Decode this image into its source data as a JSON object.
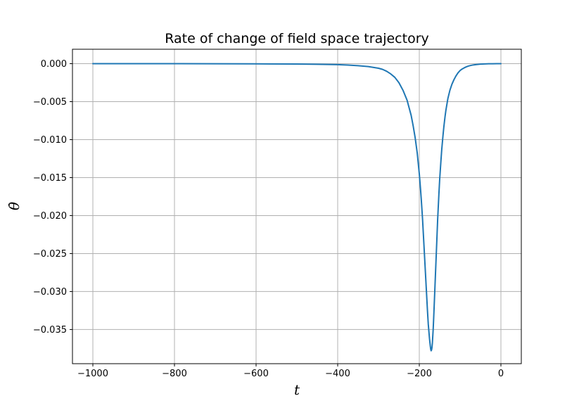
{
  "chart_data": {
    "type": "line",
    "title": "Rate of change of field space trajectory",
    "xlabel": "t",
    "ylabel": "θ̇",
    "xlim": [
      -1050,
      50
    ],
    "ylim": [
      -0.0395,
      0.0019
    ],
    "xticks": [
      -1000,
      -800,
      -600,
      -400,
      -200,
      0
    ],
    "xtick_labels": [
      "−1000",
      "−800",
      "−600",
      "−400",
      "−200",
      "0"
    ],
    "yticks": [
      0.0,
      -0.005,
      -0.01,
      -0.015,
      -0.02,
      -0.025,
      -0.03,
      -0.035
    ],
    "ytick_labels": [
      "0.000",
      "−0.005",
      "−0.010",
      "−0.015",
      "−0.020",
      "−0.025",
      "−0.030",
      "−0.035"
    ],
    "grid": true,
    "series": [
      {
        "color": "#1f77b4",
        "x": [
          -1000,
          -900,
          -800,
          -700,
          -600,
          -500,
          -450,
          -400,
          -375,
          -350,
          -325,
          -300,
          -290,
          -280,
          -270,
          -260,
          -250,
          -240,
          -230,
          -220,
          -215,
          -210,
          -205,
          -200,
          -197,
          -195,
          -192,
          -190,
          -188,
          -185,
          -183,
          -180,
          -178,
          -175,
          -173,
          -172,
          -171,
          -170,
          -169,
          -168,
          -166,
          -165,
          -163,
          -160,
          -157,
          -155,
          -152,
          -150,
          -147,
          -145,
          -142,
          -140,
          -137,
          -135,
          -130,
          -125,
          -120,
          -115,
          -110,
          -105,
          -100,
          -95,
          -90,
          -85,
          -80,
          -75,
          -70,
          -65,
          -60,
          -50,
          -40,
          -30,
          -20,
          -10,
          0
        ],
        "y": [
          0.0,
          0.0,
          0.0,
          -1e-05,
          -2e-05,
          -5e-05,
          -8e-05,
          -0.00013,
          -0.00018,
          -0.00026,
          -0.00038,
          -0.0006,
          -0.00075,
          -0.001,
          -0.00135,
          -0.0018,
          -0.0025,
          -0.0035,
          -0.0048,
          -0.0068,
          -0.0082,
          -0.0098,
          -0.0118,
          -0.0145,
          -0.0165,
          -0.018,
          -0.0205,
          -0.0225,
          -0.0245,
          -0.0275,
          -0.0295,
          -0.0325,
          -0.0343,
          -0.0362,
          -0.0372,
          -0.0376,
          -0.0378,
          -0.0377,
          -0.0374,
          -0.0368,
          -0.035,
          -0.0338,
          -0.0312,
          -0.0272,
          -0.0232,
          -0.0205,
          -0.0172,
          -0.0152,
          -0.0128,
          -0.0113,
          -0.0095,
          -0.0084,
          -0.007,
          -0.0062,
          -0.0046,
          -0.0035,
          -0.0027,
          -0.0021,
          -0.0016,
          -0.0012,
          -0.0009,
          -0.0007,
          -0.00055,
          -0.00042,
          -0.00032,
          -0.00025,
          -0.00019,
          -0.00015,
          -0.00011,
          -6e-05,
          -3e-05,
          -1.5e-05,
          -7e-06,
          -3e-06,
          0.0
        ]
      }
    ]
  }
}
